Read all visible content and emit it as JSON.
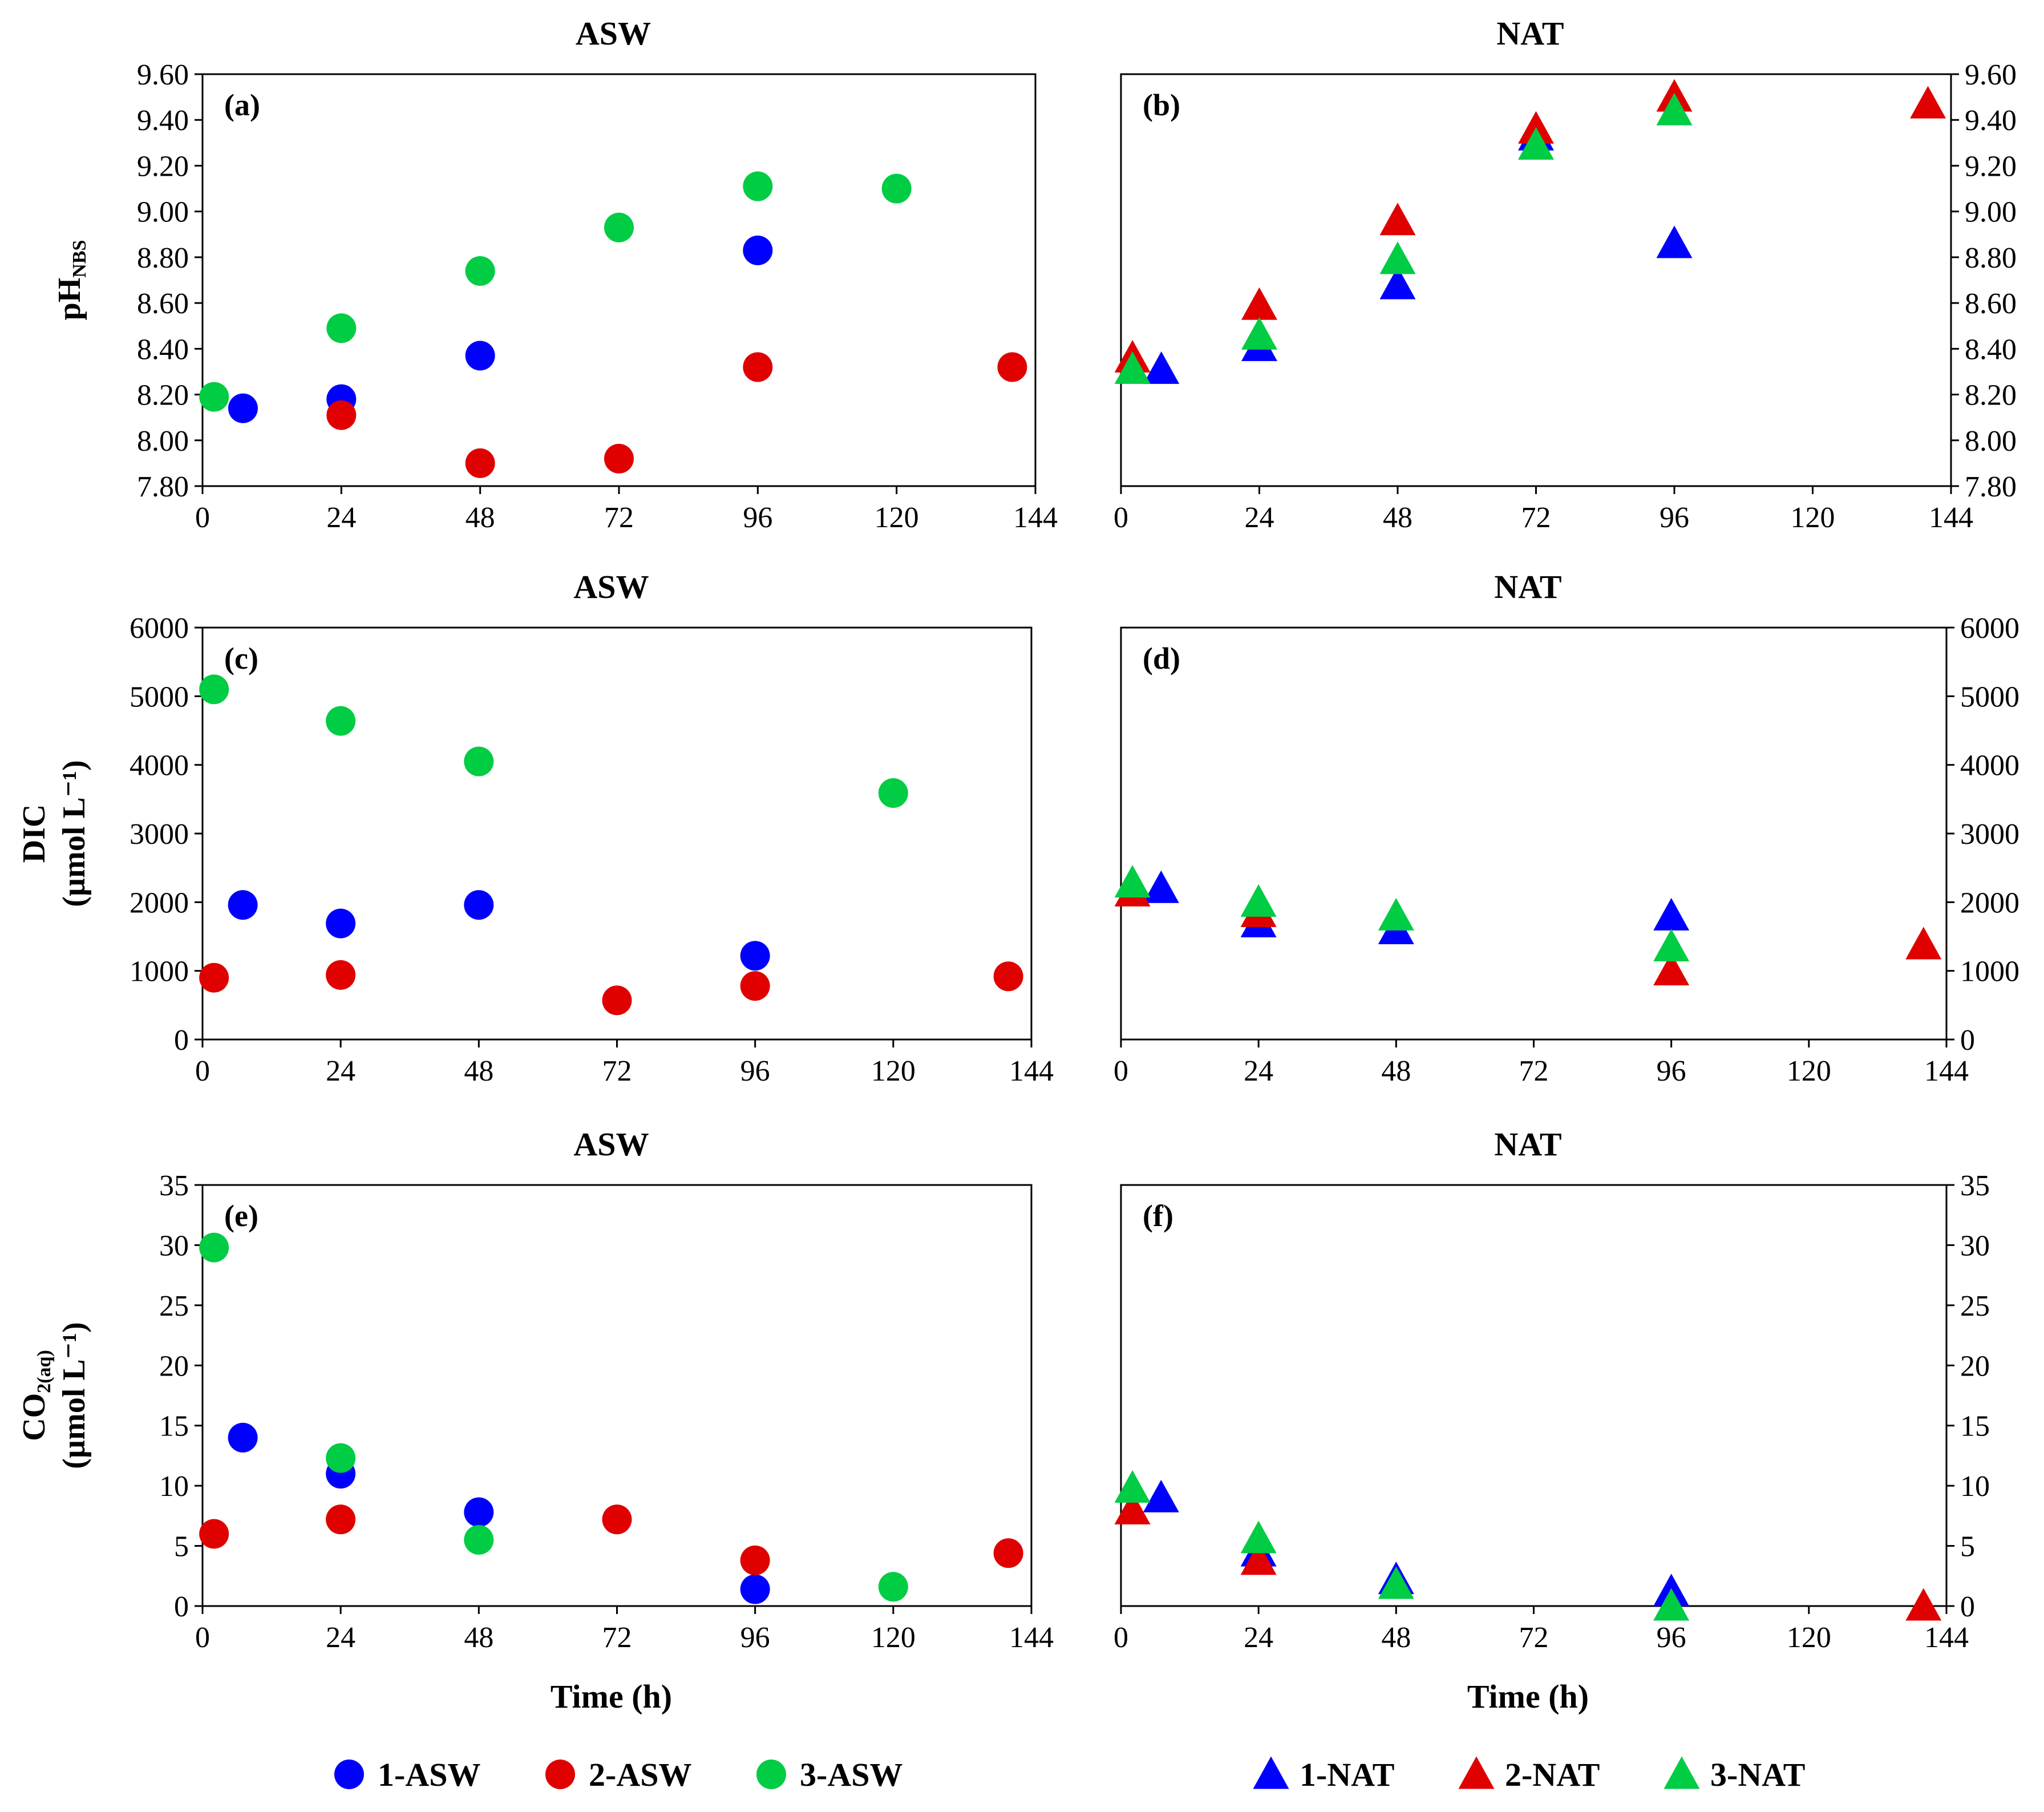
{
  "chart_data": [
    {
      "type": "scatter",
      "panel_label": "(a)",
      "title": "ASW",
      "ylabel_main": "pH",
      "ylabel_sub": "NBS",
      "ylabel_line2": "",
      "xlabel": "",
      "xlim": [
        0,
        144
      ],
      "ylim": [
        7.8,
        9.6
      ],
      "xticks": [
        0,
        24,
        48,
        72,
        96,
        120,
        144
      ],
      "yticks": [
        7.8,
        8.0,
        8.2,
        8.4,
        8.6,
        8.8,
        9.0,
        9.2,
        9.4,
        9.6
      ],
      "ytick_labels": [
        "7.80",
        "8.00",
        "8.20",
        "8.40",
        "8.60",
        "8.80",
        "9.00",
        "9.20",
        "9.40",
        "9.60"
      ],
      "series": [
        {
          "name": "1-ASW",
          "marker": "circle",
          "color": "#0000ff",
          "points": [
            [
              7,
              8.14
            ],
            [
              24,
              8.18
            ],
            [
              48,
              8.37
            ],
            [
              96,
              8.83
            ]
          ]
        },
        {
          "name": "2-ASW",
          "marker": "circle",
          "color": "#e00000",
          "points": [
            [
              24,
              8.11
            ],
            [
              48,
              7.9
            ],
            [
              72,
              7.92
            ],
            [
              96,
              8.32
            ],
            [
              140,
              8.32
            ]
          ]
        },
        {
          "name": "3-ASW",
          "marker": "circle",
          "color": "#00cc44",
          "points": [
            [
              2,
              8.19
            ],
            [
              24,
              8.49
            ],
            [
              48,
              8.74
            ],
            [
              72,
              8.93
            ],
            [
              96,
              9.11
            ],
            [
              120,
              9.1
            ]
          ]
        }
      ]
    },
    {
      "type": "scatter",
      "panel_label": "(b)",
      "title": "NAT",
      "ylabel_main": "",
      "ylabel_sub": "",
      "ylabel_line2": "",
      "xlabel": "",
      "xlim": [
        0,
        144
      ],
      "ylim": [
        7.8,
        9.6
      ],
      "xticks": [
        0,
        24,
        48,
        72,
        96,
        120,
        144
      ],
      "yticks": [
        7.8,
        8.0,
        8.2,
        8.4,
        8.6,
        8.8,
        9.0,
        9.2,
        9.4,
        9.6
      ],
      "ytick_labels": [
        "7.80",
        "8.00",
        "8.20",
        "8.40",
        "8.60",
        "8.80",
        "9.00",
        "9.20",
        "9.40",
        "9.60"
      ],
      "series": [
        {
          "name": "1-NAT",
          "marker": "triangle",
          "color": "#0000ff",
          "points": [
            [
              7,
              8.31
            ],
            [
              24,
              8.41
            ],
            [
              48,
              8.68
            ],
            [
              72,
              9.33
            ],
            [
              96,
              8.86
            ]
          ]
        },
        {
          "name": "2-NAT",
          "marker": "triangle",
          "color": "#e00000",
          "points": [
            [
              2,
              8.36
            ],
            [
              24,
              8.59
            ],
            [
              48,
              8.96
            ],
            [
              72,
              9.36
            ],
            [
              96,
              9.5
            ],
            [
              140,
              9.47
            ]
          ]
        },
        {
          "name": "3-NAT",
          "marker": "triangle",
          "color": "#00cc44",
          "points": [
            [
              2,
              8.31
            ],
            [
              24,
              8.46
            ],
            [
              48,
              8.79
            ],
            [
              72,
              9.29
            ],
            [
              96,
              9.44
            ]
          ]
        }
      ]
    },
    {
      "type": "scatter",
      "panel_label": "(c)",
      "title": "ASW",
      "ylabel_main": "DIC",
      "ylabel_sub": "",
      "ylabel_line2": "(µmol L⁻¹)",
      "xlabel": "",
      "xlim": [
        0,
        144
      ],
      "ylim": [
        0,
        6000
      ],
      "xticks": [
        0,
        24,
        48,
        72,
        96,
        120,
        144
      ],
      "yticks": [
        0,
        1000,
        2000,
        3000,
        4000,
        5000,
        6000
      ],
      "ytick_labels": [
        "0",
        "1000",
        "2000",
        "3000",
        "4000",
        "5000",
        "6000"
      ],
      "series": [
        {
          "name": "1-ASW",
          "marker": "circle",
          "color": "#0000ff",
          "points": [
            [
              7,
              1960
            ],
            [
              24,
              1690
            ],
            [
              48,
              1960
            ],
            [
              96,
              1220
            ]
          ]
        },
        {
          "name": "2-ASW",
          "marker": "circle",
          "color": "#e00000",
          "points": [
            [
              2,
              900
            ],
            [
              24,
              940
            ],
            [
              72,
              570
            ],
            [
              96,
              780
            ],
            [
              140,
              920
            ]
          ]
        },
        {
          "name": "3-ASW",
          "marker": "circle",
          "color": "#00cc44",
          "points": [
            [
              2,
              5100
            ],
            [
              24,
              4640
            ],
            [
              48,
              4050
            ],
            [
              120,
              3590
            ]
          ]
        }
      ]
    },
    {
      "type": "scatter",
      "panel_label": "(d)",
      "title": "NAT",
      "ylabel_main": "",
      "ylabel_sub": "",
      "ylabel_line2": "",
      "xlabel": "",
      "xlim": [
        0,
        144
      ],
      "ylim": [
        0,
        6000
      ],
      "xticks": [
        0,
        24,
        48,
        72,
        96,
        120,
        144
      ],
      "yticks": [
        0,
        1000,
        2000,
        3000,
        4000,
        5000,
        6000
      ],
      "ytick_labels": [
        "0",
        "1000",
        "2000",
        "3000",
        "4000",
        "5000",
        "6000"
      ],
      "series": [
        {
          "name": "1-NAT",
          "marker": "triangle",
          "color": "#0000ff",
          "points": [
            [
              7,
              2200
            ],
            [
              24,
              1700
            ],
            [
              48,
              1600
            ],
            [
              96,
              1800
            ]
          ]
        },
        {
          "name": "2-NAT",
          "marker": "triangle",
          "color": "#e00000",
          "points": [
            [
              2,
              2150
            ],
            [
              24,
              1850
            ],
            [
              96,
              1000
            ],
            [
              140,
              1380
            ]
          ]
        },
        {
          "name": "3-NAT",
          "marker": "triangle",
          "color": "#00cc44",
          "points": [
            [
              2,
              2280
            ],
            [
              24,
              2000
            ],
            [
              48,
              1800
            ],
            [
              96,
              1350
            ]
          ]
        }
      ]
    },
    {
      "type": "scatter",
      "panel_label": "(e)",
      "title": "ASW",
      "ylabel_main": "CO",
      "ylabel_sub": "2(aq)",
      "ylabel_line2": "(µmol L⁻¹)",
      "xlabel": "Time (h)",
      "xlim": [
        0,
        144
      ],
      "ylim": [
        0,
        35
      ],
      "xticks": [
        0,
        24,
        48,
        72,
        96,
        120,
        144
      ],
      "yticks": [
        0,
        5,
        10,
        15,
        20,
        25,
        30,
        35
      ],
      "ytick_labels": [
        "0",
        "5",
        "10",
        "15",
        "20",
        "25",
        "30",
        "35"
      ],
      "series": [
        {
          "name": "1-ASW",
          "marker": "circle",
          "color": "#0000ff",
          "points": [
            [
              7,
              14.0
            ],
            [
              24,
              11.0
            ],
            [
              48,
              7.8
            ],
            [
              96,
              1.4
            ]
          ]
        },
        {
          "name": "2-ASW",
          "marker": "circle",
          "color": "#e00000",
          "points": [
            [
              2,
              6.0
            ],
            [
              24,
              7.2
            ],
            [
              72,
              7.2
            ],
            [
              96,
              3.8
            ],
            [
              140,
              4.4
            ]
          ]
        },
        {
          "name": "3-ASW",
          "marker": "circle",
          "color": "#00cc44",
          "points": [
            [
              2,
              29.8
            ],
            [
              24,
              12.3
            ],
            [
              48,
              5.5
            ],
            [
              120,
              1.6
            ]
          ]
        }
      ]
    },
    {
      "type": "scatter",
      "panel_label": "(f)",
      "title": "NAT",
      "ylabel_main": "",
      "ylabel_sub": "",
      "ylabel_line2": "",
      "xlabel": "Time (h)",
      "xlim": [
        0,
        144
      ],
      "ylim": [
        0,
        35
      ],
      "xticks": [
        0,
        24,
        48,
        72,
        96,
        120,
        144
      ],
      "yticks": [
        0,
        5,
        10,
        15,
        20,
        25,
        30,
        35
      ],
      "ytick_labels": [
        "0",
        "5",
        "10",
        "15",
        "20",
        "25",
        "30",
        "35"
      ],
      "series": [
        {
          "name": "1-NAT",
          "marker": "triangle",
          "color": "#0000ff",
          "points": [
            [
              7,
              9.0
            ],
            [
              24,
              4.5
            ],
            [
              48,
              2.2
            ],
            [
              96,
              1.2
            ]
          ]
        },
        {
          "name": "2-NAT",
          "marker": "triangle",
          "color": "#e00000",
          "points": [
            [
              2,
              8.0
            ],
            [
              24,
              3.8
            ],
            [
              140,
              0.0
            ]
          ]
        },
        {
          "name": "3-NAT",
          "marker": "triangle",
          "color": "#00cc44",
          "points": [
            [
              2,
              9.8
            ],
            [
              24,
              5.6
            ],
            [
              48,
              1.8
            ],
            [
              96,
              0.0
            ]
          ]
        }
      ]
    }
  ],
  "legend": {
    "asw": [
      {
        "name": "1-ASW",
        "marker": "circle",
        "color": "#0000ff"
      },
      {
        "name": "2-ASW",
        "marker": "circle",
        "color": "#e00000"
      },
      {
        "name": "3-ASW",
        "marker": "circle",
        "color": "#00cc44"
      }
    ],
    "nat": [
      {
        "name": "1-NAT",
        "marker": "triangle",
        "color": "#0000ff"
      },
      {
        "name": "2-NAT",
        "marker": "triangle",
        "color": "#e00000"
      },
      {
        "name": "3-NAT",
        "marker": "triangle",
        "color": "#00cc44"
      }
    ]
  }
}
